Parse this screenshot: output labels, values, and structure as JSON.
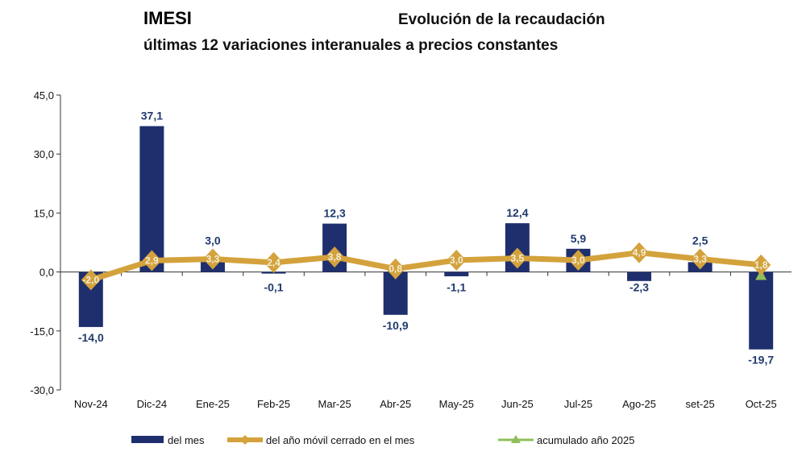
{
  "chart_data": {
    "type": "bar",
    "title": "IMESI",
    "title_right": "Evolución de la recaudación",
    "subtitle": "últimas 12 variaciones interanuales a precios constantes",
    "categories": [
      "Nov-24",
      "Dic-24",
      "Ene-25",
      "Feb-25",
      "Mar-25",
      "Abr-25",
      "May-25",
      "Jun-25",
      "Jul-25",
      "Ago-25",
      "set-25",
      "Oct-25"
    ],
    "ylim": [
      -30,
      45
    ],
    "yticks": [
      "-30,0",
      "-15,0",
      "0,0",
      "15,0",
      "30,0",
      "45,0"
    ],
    "ytick_values": [
      -30,
      -15,
      0,
      15,
      30,
      45
    ],
    "grid": false,
    "legend_placement": "bottom",
    "series": [
      {
        "name": "del mes",
        "type": "bar",
        "color": "#1f2f6e",
        "values": [
          -14.0,
          37.1,
          3.0,
          -0.1,
          12.3,
          -10.9,
          -1.1,
          12.4,
          5.9,
          -2.3,
          2.5,
          -19.7
        ],
        "labels": [
          "-14,0",
          "37,1",
          "3,0",
          "-0,1",
          "12,3",
          "-10,9",
          "-1,1",
          "12,4",
          "5,9",
          "-2,3",
          "2,5",
          "-19,7"
        ]
      },
      {
        "name": "del año móvil cerrado en el mes",
        "type": "line",
        "color": "#d4a23c",
        "values": [
          -2.0,
          2.9,
          3.3,
          2.4,
          3.8,
          0.8,
          3.0,
          3.5,
          3.0,
          4.9,
          3.3,
          1.8
        ],
        "labels": [
          "-2,0",
          "2,9",
          "3,3",
          "2,4",
          "3,8",
          "0,8",
          "3,0",
          "3,5",
          "3,0",
          "4,9",
          "3,3",
          "1,8"
        ]
      },
      {
        "name": "acumulado año 2025",
        "type": "scatter",
        "color": "#8fbf5a",
        "x": [
          "Oct-25"
        ],
        "values": [
          -1.0
        ]
      }
    ]
  }
}
